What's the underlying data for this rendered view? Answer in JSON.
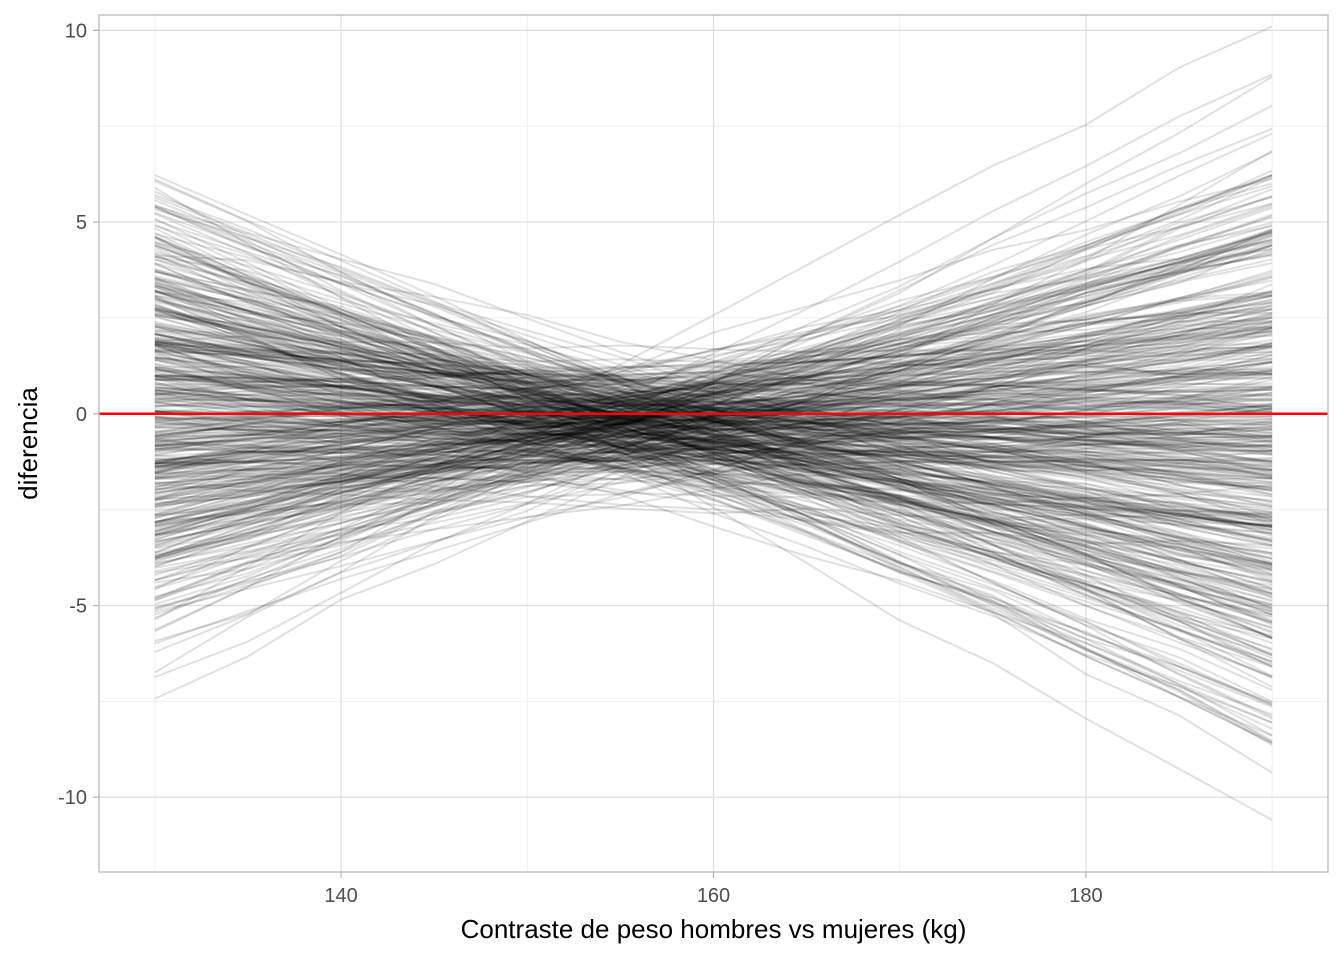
{
  "chart_data": {
    "type": "line",
    "xlabel": "Contraste de peso hombres vs mujeres (kg)",
    "ylabel": "diferencia",
    "xlim": [
      127,
      193
    ],
    "ylim": [
      -11.95,
      10.4
    ],
    "x_ticks": [
      140,
      160,
      180
    ],
    "x_tick_labels": [
      "140",
      "160",
      "180"
    ],
    "x_minor_ticks": [
      130,
      150,
      170,
      190
    ],
    "y_ticks": [
      10,
      5,
      0,
      -5,
      -10
    ],
    "y_tick_labels": [
      "10",
      "5",
      "0",
      "-5",
      "-10"
    ],
    "y_minor_ticks": [
      7.5,
      2.5,
      -2.5,
      -7.5
    ],
    "x_grid": [
      130,
      135,
      140,
      145,
      150,
      155,
      160,
      165,
      170,
      175,
      180,
      185,
      190
    ],
    "series_description_count": 500,
    "simulation": {
      "x_start": 130,
      "x_end": 190,
      "pivot_x": 155,
      "slope_scale_at_190": 3.6,
      "intercept_sd": 0.75,
      "pivot_offset": -0.2
    },
    "series_color": "#000000",
    "series_opacity": 0.12,
    "reference_line": {
      "y": 0,
      "color": "#ff0000"
    },
    "grid": true,
    "legend": "none"
  },
  "colors": {
    "background": "#ffffff",
    "major_grid": "#dedede",
    "minor_grid": "#efefef",
    "border": "#b3b3b3",
    "tick_text": "#4d4d4d"
  }
}
